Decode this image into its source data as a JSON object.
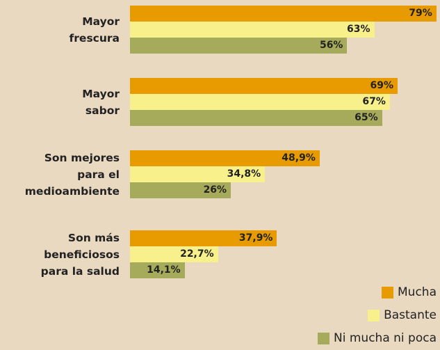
{
  "chart_data": {
    "type": "bar",
    "orientation": "horizontal",
    "categories": [
      "Mayor\nfrescura",
      "Mayor\nsabor",
      "Son mejores\npara el\nmedioambiente",
      "Son más\nbeneficiosos\npara la salud"
    ],
    "series": [
      {
        "name": "Mucha",
        "color": "#e89b00",
        "values": [
          79,
          69,
          48.9,
          37.9
        ],
        "value_labels": [
          "79%",
          "69%",
          "48,9%",
          "37,9%"
        ]
      },
      {
        "name": "Bastante",
        "color": "#f8f08a",
        "values": [
          63,
          67,
          34.8,
          22.7
        ],
        "value_labels": [
          "63%",
          "67%",
          "34,8%",
          "22,7%"
        ]
      },
      {
        "name": "Ni mucha ni poca",
        "color": "#a6aa5b",
        "values": [
          56,
          65,
          26,
          14.1
        ],
        "value_labels": [
          "56%",
          "65%",
          "26%",
          "14,1%"
        ]
      }
    ],
    "legend": "bottom-right"
  }
}
